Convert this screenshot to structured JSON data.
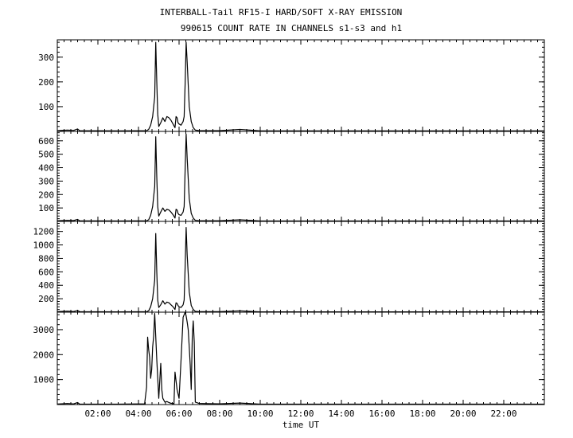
{
  "title": "INTERBALL-Tail RF15-I HARD/SOFT X-RAY EMISSION",
  "subtitle": "990615  COUNT RATE IN CHANNELS s1-s3 and h1",
  "chart_data": [
    {
      "type": "line",
      "xlim": [
        0,
        24
      ],
      "ylim": [
        0,
        370
      ],
      "yticks": [
        100,
        200,
        300
      ],
      "series": [
        {
          "x": [
            0.0,
            0.5,
            0.8,
            1.0,
            1.1,
            3.0,
            4.4,
            4.5,
            4.6,
            4.7,
            4.8,
            4.85,
            4.9,
            4.95,
            5.0,
            5.1,
            5.2,
            5.3,
            5.4,
            5.5,
            5.6,
            5.7,
            5.8,
            5.85,
            5.9,
            5.95,
            6.0,
            6.1,
            6.2,
            6.25,
            6.3,
            6.35,
            6.4,
            6.5,
            6.6,
            6.7,
            6.8,
            7.0,
            8.0,
            9.0,
            10.0,
            11.0,
            12.0,
            14.0,
            16.0,
            18.0,
            20.0,
            22.0,
            24.0
          ],
          "y": [
            3,
            5,
            4,
            10,
            3,
            2,
            3,
            8,
            25,
            60,
            140,
            360,
            200,
            70,
            20,
            35,
            55,
            40,
            60,
            55,
            45,
            30,
            15,
            60,
            55,
            35,
            30,
            25,
            40,
            60,
            200,
            360,
            280,
            100,
            40,
            15,
            5,
            3,
            3,
            8,
            2,
            2,
            2,
            2,
            2,
            2,
            2,
            2,
            2
          ]
        }
      ]
    },
    {
      "type": "line",
      "xlim": [
        0,
        24
      ],
      "ylim": [
        0,
        670
      ],
      "yticks": [
        100,
        200,
        300,
        400,
        500,
        600
      ],
      "series": [
        {
          "x": [
            0.0,
            0.5,
            0.8,
            1.0,
            1.1,
            3.0,
            4.4,
            4.5,
            4.6,
            4.7,
            4.8,
            4.85,
            4.9,
            4.95,
            5.0,
            5.1,
            5.2,
            5.3,
            5.4,
            5.5,
            5.6,
            5.7,
            5.8,
            5.85,
            5.9,
            5.95,
            6.0,
            6.1,
            6.2,
            6.25,
            6.3,
            6.35,
            6.4,
            6.5,
            6.6,
            6.7,
            6.8,
            7.0,
            8.0,
            9.0,
            10.0,
            11.0,
            12.0,
            14.0,
            16.0,
            18.0,
            20.0,
            22.0,
            24.0
          ],
          "y": [
            5,
            8,
            6,
            15,
            5,
            3,
            5,
            12,
            45,
            110,
            260,
            630,
            330,
            110,
            40,
            70,
            100,
            75,
            90,
            85,
            70,
            50,
            25,
            90,
            85,
            60,
            50,
            45,
            70,
            110,
            400,
            650,
            470,
            170,
            60,
            25,
            8,
            5,
            5,
            12,
            3,
            3,
            3,
            3,
            3,
            3,
            3,
            3,
            3
          ]
        }
      ]
    },
    {
      "type": "line",
      "xlim": [
        0,
        24
      ],
      "ylim": [
        0,
        1350
      ],
      "yticks": [
        200,
        400,
        600,
        800,
        1000,
        1200
      ],
      "series": [
        {
          "x": [
            0.0,
            0.5,
            0.8,
            1.0,
            1.1,
            3.0,
            4.4,
            4.5,
            4.6,
            4.7,
            4.8,
            4.85,
            4.9,
            4.95,
            5.0,
            5.1,
            5.2,
            5.3,
            5.4,
            5.5,
            5.6,
            5.7,
            5.8,
            5.85,
            5.9,
            5.95,
            6.0,
            6.1,
            6.2,
            6.25,
            6.3,
            6.35,
            6.4,
            6.5,
            6.6,
            6.7,
            6.8,
            7.0,
            8.0,
            9.0,
            10.0,
            11.0,
            12.0,
            14.0,
            16.0,
            18.0,
            20.0,
            22.0,
            24.0
          ],
          "y": [
            8,
            15,
            10,
            25,
            8,
            5,
            8,
            20,
            80,
            200,
            480,
            1170,
            600,
            180,
            70,
            110,
            170,
            120,
            150,
            140,
            110,
            80,
            40,
            140,
            130,
            100,
            80,
            70,
            110,
            180,
            700,
            1260,
            850,
            300,
            100,
            40,
            12,
            8,
            8,
            20,
            5,
            5,
            5,
            5,
            5,
            5,
            5,
            5,
            5
          ]
        }
      ]
    },
    {
      "type": "line",
      "xlim": [
        0,
        24
      ],
      "ylim": [
        0,
        3700
      ],
      "yticks": [
        1000,
        2000,
        3000
      ],
      "xticks": [
        2,
        4,
        6,
        8,
        10,
        12,
        14,
        16,
        18,
        20,
        22
      ],
      "xticklabels": [
        "02:00",
        "04:00",
        "06:00",
        "08:00",
        "10:00",
        "12:00",
        "14:00",
        "16:00",
        "18:00",
        "20:00",
        "22:00"
      ],
      "xlabel": "time UT",
      "series": [
        {
          "x": [
            0.0,
            0.5,
            0.8,
            1.0,
            1.1,
            3.0,
            4.3,
            4.4,
            4.45,
            4.5,
            4.55,
            4.6,
            4.65,
            4.7,
            4.75,
            4.8,
            4.9,
            5.0,
            5.1,
            5.15,
            5.2,
            5.3,
            5.4,
            5.5,
            5.6,
            5.7,
            5.75,
            5.8,
            5.9,
            6.0,
            6.1,
            6.2,
            6.3,
            6.35,
            6.4,
            6.45,
            6.5,
            6.55,
            6.6,
            6.65,
            6.7,
            6.75,
            6.8,
            7.0,
            8.0,
            9.0,
            10.0,
            11.0,
            12.0,
            14.0,
            16.0,
            18.0,
            20.0,
            22.0,
            24.0
          ],
          "y": [
            20,
            40,
            25,
            80,
            20,
            15,
            30,
            700,
            2700,
            2200,
            1900,
            1050,
            1400,
            2300,
            2750,
            3650,
            1800,
            250,
            1650,
            600,
            250,
            100,
            120,
            80,
            50,
            40,
            30,
            1300,
            600,
            250,
            1800,
            3500,
            3700,
            3550,
            3300,
            3000,
            2300,
            1600,
            600,
            2700,
            3350,
            2500,
            100,
            40,
            30,
            60,
            15,
            15,
            15,
            15,
            15,
            15,
            15,
            15,
            15
          ]
        }
      ]
    }
  ]
}
